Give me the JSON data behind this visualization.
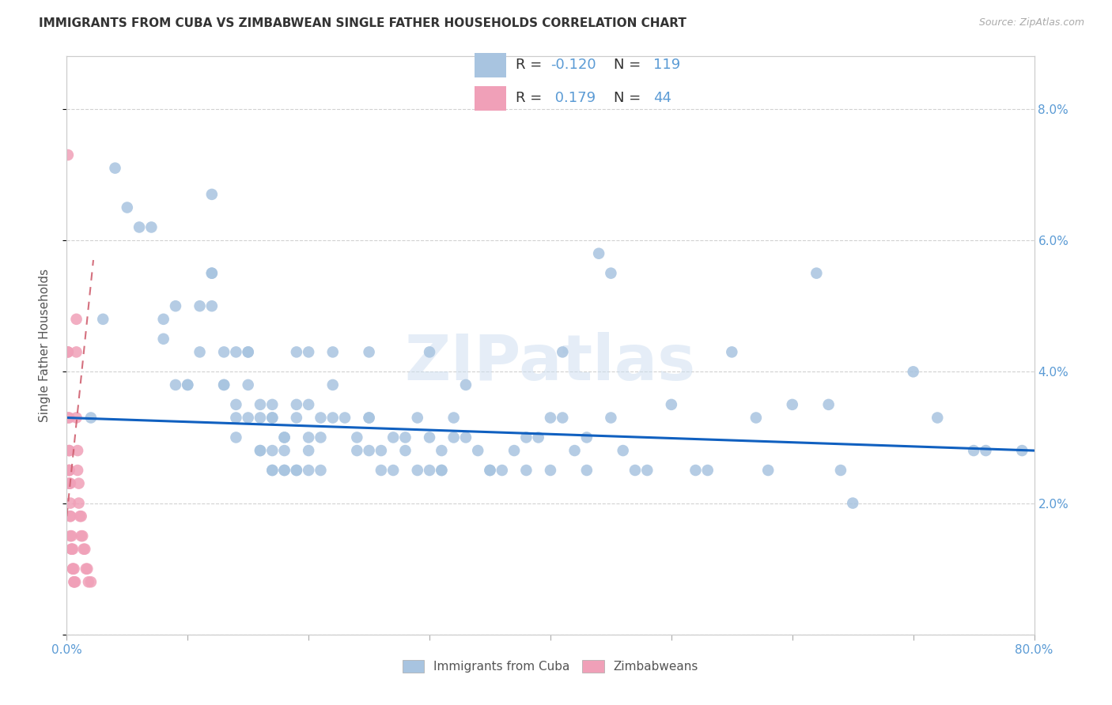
{
  "title": "IMMIGRANTS FROM CUBA VS ZIMBABWEAN SINGLE FATHER HOUSEHOLDS CORRELATION CHART",
  "source": "Source: ZipAtlas.com",
  "ylabel": "Single Father Households",
  "xlim": [
    0.0,
    0.8
  ],
  "ylim": [
    0.0,
    0.088
  ],
  "xticks": [
    0.0,
    0.1,
    0.2,
    0.3,
    0.4,
    0.5,
    0.6,
    0.7,
    0.8
  ],
  "xticklabels": [
    "0.0%",
    "",
    "",
    "",
    "",
    "",
    "",
    "",
    "80.0%"
  ],
  "yticks_right": [
    0.0,
    0.02,
    0.04,
    0.06,
    0.08
  ],
  "ytick_labels_right": [
    "",
    "2.0%",
    "4.0%",
    "6.0%",
    "8.0%"
  ],
  "blue_color": "#a8c4e0",
  "pink_color": "#f0a0b8",
  "trendline_blue_color": "#1060c0",
  "trendline_pink_color": "#d06070",
  "watermark": "ZIPatlas",
  "legend_blue_R": "-0.120",
  "legend_blue_N": "119",
  "legend_pink_R": "0.179",
  "legend_pink_N": "44",
  "blue_scatter": [
    [
      0.02,
      0.033
    ],
    [
      0.03,
      0.048
    ],
    [
      0.04,
      0.071
    ],
    [
      0.05,
      0.065
    ],
    [
      0.06,
      0.062
    ],
    [
      0.07,
      0.062
    ],
    [
      0.08,
      0.048
    ],
    [
      0.08,
      0.045
    ],
    [
      0.09,
      0.038
    ],
    [
      0.09,
      0.05
    ],
    [
      0.1,
      0.038
    ],
    [
      0.1,
      0.038
    ],
    [
      0.11,
      0.043
    ],
    [
      0.11,
      0.05
    ],
    [
      0.12,
      0.067
    ],
    [
      0.12,
      0.055
    ],
    [
      0.12,
      0.055
    ],
    [
      0.12,
      0.05
    ],
    [
      0.13,
      0.038
    ],
    [
      0.13,
      0.038
    ],
    [
      0.13,
      0.043
    ],
    [
      0.14,
      0.043
    ],
    [
      0.14,
      0.035
    ],
    [
      0.14,
      0.03
    ],
    [
      0.14,
      0.033
    ],
    [
      0.15,
      0.033
    ],
    [
      0.15,
      0.038
    ],
    [
      0.15,
      0.043
    ],
    [
      0.15,
      0.043
    ],
    [
      0.16,
      0.035
    ],
    [
      0.16,
      0.033
    ],
    [
      0.16,
      0.028
    ],
    [
      0.16,
      0.028
    ],
    [
      0.17,
      0.033
    ],
    [
      0.17,
      0.033
    ],
    [
      0.17,
      0.035
    ],
    [
      0.17,
      0.028
    ],
    [
      0.17,
      0.025
    ],
    [
      0.17,
      0.025
    ],
    [
      0.18,
      0.03
    ],
    [
      0.18,
      0.028
    ],
    [
      0.18,
      0.03
    ],
    [
      0.18,
      0.025
    ],
    [
      0.18,
      0.025
    ],
    [
      0.19,
      0.033
    ],
    [
      0.19,
      0.043
    ],
    [
      0.19,
      0.035
    ],
    [
      0.19,
      0.025
    ],
    [
      0.19,
      0.025
    ],
    [
      0.2,
      0.035
    ],
    [
      0.2,
      0.043
    ],
    [
      0.2,
      0.03
    ],
    [
      0.2,
      0.028
    ],
    [
      0.2,
      0.025
    ],
    [
      0.21,
      0.033
    ],
    [
      0.21,
      0.03
    ],
    [
      0.21,
      0.025
    ],
    [
      0.22,
      0.043
    ],
    [
      0.22,
      0.038
    ],
    [
      0.22,
      0.033
    ],
    [
      0.23,
      0.033
    ],
    [
      0.24,
      0.03
    ],
    [
      0.24,
      0.028
    ],
    [
      0.25,
      0.033
    ],
    [
      0.25,
      0.043
    ],
    [
      0.25,
      0.033
    ],
    [
      0.25,
      0.028
    ],
    [
      0.26,
      0.028
    ],
    [
      0.26,
      0.025
    ],
    [
      0.27,
      0.03
    ],
    [
      0.27,
      0.025
    ],
    [
      0.28,
      0.03
    ],
    [
      0.28,
      0.028
    ],
    [
      0.29,
      0.033
    ],
    [
      0.29,
      0.025
    ],
    [
      0.3,
      0.025
    ],
    [
      0.3,
      0.043
    ],
    [
      0.3,
      0.03
    ],
    [
      0.31,
      0.028
    ],
    [
      0.31,
      0.025
    ],
    [
      0.31,
      0.025
    ],
    [
      0.32,
      0.033
    ],
    [
      0.32,
      0.03
    ],
    [
      0.33,
      0.038
    ],
    [
      0.33,
      0.03
    ],
    [
      0.34,
      0.028
    ],
    [
      0.35,
      0.025
    ],
    [
      0.35,
      0.025
    ],
    [
      0.36,
      0.025
    ],
    [
      0.37,
      0.028
    ],
    [
      0.38,
      0.03
    ],
    [
      0.38,
      0.025
    ],
    [
      0.39,
      0.03
    ],
    [
      0.4,
      0.033
    ],
    [
      0.4,
      0.025
    ],
    [
      0.41,
      0.043
    ],
    [
      0.41,
      0.033
    ],
    [
      0.42,
      0.028
    ],
    [
      0.43,
      0.03
    ],
    [
      0.43,
      0.025
    ],
    [
      0.44,
      0.058
    ],
    [
      0.45,
      0.055
    ],
    [
      0.45,
      0.033
    ],
    [
      0.46,
      0.028
    ],
    [
      0.47,
      0.025
    ],
    [
      0.48,
      0.025
    ],
    [
      0.5,
      0.035
    ],
    [
      0.52,
      0.025
    ],
    [
      0.53,
      0.025
    ],
    [
      0.55,
      0.043
    ],
    [
      0.57,
      0.033
    ],
    [
      0.58,
      0.025
    ],
    [
      0.6,
      0.035
    ],
    [
      0.62,
      0.055
    ],
    [
      0.63,
      0.035
    ],
    [
      0.64,
      0.025
    ],
    [
      0.65,
      0.02
    ],
    [
      0.7,
      0.04
    ],
    [
      0.72,
      0.033
    ],
    [
      0.75,
      0.028
    ],
    [
      0.76,
      0.028
    ],
    [
      0.79,
      0.028
    ]
  ],
  "pink_scatter": [
    [
      0.001,
      0.073
    ],
    [
      0.001,
      0.043
    ],
    [
      0.001,
      0.043
    ],
    [
      0.001,
      0.033
    ],
    [
      0.002,
      0.033
    ],
    [
      0.002,
      0.028
    ],
    [
      0.002,
      0.028
    ],
    [
      0.002,
      0.025
    ],
    [
      0.002,
      0.025
    ],
    [
      0.002,
      0.025
    ],
    [
      0.002,
      0.023
    ],
    [
      0.002,
      0.023
    ],
    [
      0.003,
      0.023
    ],
    [
      0.003,
      0.02
    ],
    [
      0.003,
      0.018
    ],
    [
      0.003,
      0.018
    ],
    [
      0.003,
      0.015
    ],
    [
      0.004,
      0.015
    ],
    [
      0.004,
      0.013
    ],
    [
      0.004,
      0.013
    ],
    [
      0.005,
      0.013
    ],
    [
      0.005,
      0.01
    ],
    [
      0.005,
      0.01
    ],
    [
      0.006,
      0.01
    ],
    [
      0.006,
      0.008
    ],
    [
      0.006,
      0.008
    ],
    [
      0.007,
      0.008
    ],
    [
      0.008,
      0.048
    ],
    [
      0.008,
      0.043
    ],
    [
      0.008,
      0.033
    ],
    [
      0.009,
      0.028
    ],
    [
      0.009,
      0.025
    ],
    [
      0.01,
      0.023
    ],
    [
      0.01,
      0.02
    ],
    [
      0.011,
      0.018
    ],
    [
      0.012,
      0.018
    ],
    [
      0.012,
      0.015
    ],
    [
      0.013,
      0.015
    ],
    [
      0.014,
      0.013
    ],
    [
      0.015,
      0.013
    ],
    [
      0.016,
      0.01
    ],
    [
      0.017,
      0.01
    ],
    [
      0.018,
      0.008
    ],
    [
      0.02,
      0.008
    ]
  ],
  "blue_trend_x": [
    0.0,
    0.8
  ],
  "blue_trend_y": [
    0.033,
    0.028
  ],
  "pink_trend_x": [
    0.0,
    0.022
  ],
  "pink_trend_y": [
    0.018,
    0.057
  ]
}
